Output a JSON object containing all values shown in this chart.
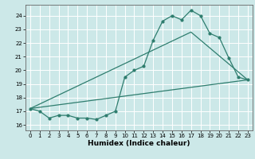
{
  "xlabel": "Humidex (Indice chaleur)",
  "xlim": [
    -0.5,
    23.5
  ],
  "ylim": [
    15.6,
    24.8
  ],
  "yticks": [
    16,
    17,
    18,
    19,
    20,
    21,
    22,
    23,
    24
  ],
  "xticks": [
    0,
    1,
    2,
    3,
    4,
    5,
    6,
    7,
    8,
    9,
    10,
    11,
    12,
    13,
    14,
    15,
    16,
    17,
    18,
    19,
    20,
    21,
    22,
    23
  ],
  "background_color": "#cce8e8",
  "grid_color": "#ffffff",
  "line_color": "#2e7d6e",
  "line1_x": [
    0,
    1,
    2,
    3,
    4,
    5,
    6,
    7,
    8,
    9,
    10,
    11,
    12,
    13,
    14,
    15,
    16,
    17,
    18,
    19,
    20,
    21,
    22,
    23
  ],
  "line1_y": [
    17.2,
    17.0,
    16.5,
    16.7,
    16.7,
    16.5,
    16.5,
    16.4,
    16.7,
    17.0,
    19.5,
    20.0,
    20.3,
    22.2,
    23.6,
    24.0,
    23.7,
    24.4,
    24.0,
    22.7,
    22.4,
    20.9,
    19.5,
    19.3
  ],
  "line2_x": [
    0,
    23
  ],
  "line2_y": [
    17.2,
    19.3
  ],
  "line3_x": [
    0,
    17,
    23
  ],
  "line3_y": [
    17.2,
    22.8,
    19.3
  ]
}
